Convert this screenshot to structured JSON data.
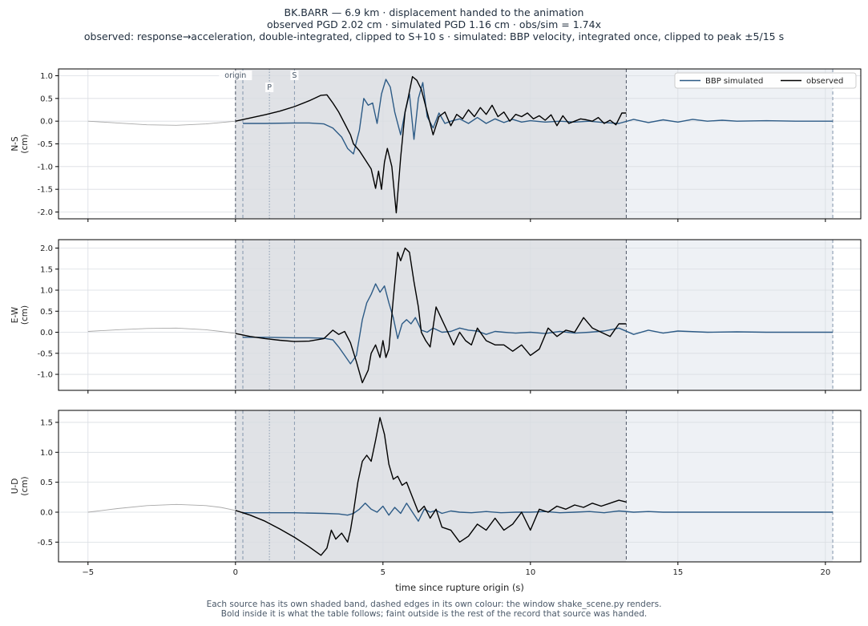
{
  "title_lines": [
    "BK.BARR  —  6.9 km   ·   displacement handed to the animation",
    "observed PGD 2.02 cm   ·   simulated PGD 1.16 cm   ·   obs/sim = 1.74x",
    "observed: response→acceleration, double-integrated, clipped to S+10 s   ·   simulated: BBP velocity, integrated once, clipped to peak ±5/15 s"
  ],
  "footer_lines": [
    "Each source has its own shaded band, dashed edges in its own colour: the window shake_scene.py renders.",
    "Bold inside it is what the table follows;   faint outside is the rest of the record that source was handed."
  ],
  "colors": {
    "observed": "#000000",
    "simulated": "#2d5b86",
    "observed_band": "#e0e2e6",
    "simulated_band": "#eef1f5",
    "phase_line": "#8a9bb0",
    "window_edge": "#5a6270",
    "faint_trace": "#a8a8a8"
  },
  "chart_data": {
    "type": "line",
    "xlabel": "time since rupture origin (s)",
    "xlim": [
      -6,
      21.2
    ],
    "xticks": [
      -5,
      0,
      5,
      10,
      15,
      20
    ],
    "grid": true,
    "legend": {
      "placement": "top-right",
      "panel": 0,
      "entries": [
        "BBP simulated",
        "observed"
      ]
    },
    "markers": [
      {
        "label": "origin",
        "t": 0.0
      },
      {
        "label": "P",
        "t": 1.15
      },
      {
        "label": "S",
        "t": 2.0
      }
    ],
    "windows": {
      "observed": [
        0.0,
        13.25
      ],
      "simulated": [
        0.25,
        20.25
      ]
    },
    "panels": [
      {
        "ylabel": "N-S\n(cm)",
        "ylim": [
          -2.15,
          1.15
        ],
        "yticks": [
          -2.0,
          -1.5,
          -1.0,
          -0.5,
          0.0,
          0.5,
          1.0
        ],
        "observed_faint": {
          "t": [
            -5,
            -4,
            -3,
            -2,
            -1,
            -0.5,
            0
          ],
          "v": [
            0.0,
            -0.04,
            -0.08,
            -0.09,
            -0.06,
            -0.03,
            0.0
          ]
        },
        "observed": {
          "t": [
            0,
            0.5,
            1,
            1.5,
            2,
            2.5,
            2.9,
            3.1,
            3.3,
            3.5,
            3.7,
            3.9,
            4.0,
            4.2,
            4.4,
            4.6,
            4.75,
            4.85,
            4.95,
            5.05,
            5.15,
            5.3,
            5.45,
            5.6,
            5.75,
            5.85,
            6.0,
            6.15,
            6.3,
            6.5,
            6.7,
            6.9,
            7.1,
            7.3,
            7.5,
            7.7,
            7.9,
            8.1,
            8.3,
            8.5,
            8.7,
            8.9,
            9.1,
            9.3,
            9.5,
            9.7,
            9.9,
            10.1,
            10.3,
            10.5,
            10.7,
            10.9,
            11.1,
            11.3,
            11.5,
            11.7,
            11.9,
            12.1,
            12.3,
            12.5,
            12.7,
            12.9,
            13.1,
            13.25
          ],
          "v": [
            0.0,
            0.07,
            0.14,
            0.22,
            0.32,
            0.45,
            0.57,
            0.58,
            0.4,
            0.2,
            -0.05,
            -0.3,
            -0.5,
            -0.65,
            -0.85,
            -1.05,
            -1.48,
            -1.1,
            -1.5,
            -0.9,
            -0.6,
            -1.0,
            -2.02,
            -0.8,
            0.2,
            0.5,
            0.98,
            0.9,
            0.7,
            0.2,
            -0.3,
            0.1,
            0.2,
            -0.1,
            0.15,
            0.05,
            0.25,
            0.1,
            0.3,
            0.15,
            0.35,
            0.1,
            0.2,
            0.0,
            0.15,
            0.1,
            0.18,
            0.05,
            0.12,
            0.02,
            0.14,
            -0.1,
            0.12,
            -0.05,
            0.0,
            0.05,
            0.03,
            0.0,
            0.08,
            -0.05,
            0.02,
            -0.08,
            0.18,
            0.18
          ]
        },
        "simulated": {
          "t": [
            0.25,
            1,
            2,
            2.5,
            3,
            3.3,
            3.6,
            3.8,
            4.0,
            4.2,
            4.35,
            4.5,
            4.65,
            4.8,
            4.95,
            5.1,
            5.25,
            5.4,
            5.6,
            5.75,
            5.9,
            6.05,
            6.2,
            6.35,
            6.5,
            6.7,
            6.9,
            7.1,
            7.3,
            7.6,
            7.9,
            8.2,
            8.5,
            8.8,
            9.1,
            9.4,
            9.7,
            10.0,
            10.5,
            11.0,
            11.5,
            12.0,
            12.5,
            13.0,
            13.5,
            14.0,
            14.5,
            15.0,
            15.5,
            16.0,
            16.5,
            17.0,
            18.0,
            19.0,
            20.25
          ],
          "v": [
            -0.05,
            -0.05,
            -0.04,
            -0.04,
            -0.06,
            -0.15,
            -0.35,
            -0.6,
            -0.72,
            -0.2,
            0.5,
            0.35,
            0.4,
            -0.05,
            0.6,
            0.92,
            0.75,
            0.2,
            -0.3,
            0.2,
            0.6,
            -0.4,
            0.5,
            0.85,
            0.1,
            -0.15,
            0.18,
            -0.05,
            0.0,
            0.05,
            -0.05,
            0.08,
            -0.05,
            0.05,
            -0.03,
            0.04,
            -0.02,
            0.01,
            -0.02,
            0.0,
            -0.02,
            0.0,
            -0.03,
            -0.05,
            0.04,
            -0.03,
            0.03,
            -0.02,
            0.04,
            0.0,
            0.02,
            0.0,
            0.01,
            0.0,
            0.0
          ]
        }
      },
      {
        "ylabel": "E-W\n(cm)",
        "ylim": [
          -1.38,
          2.2
        ],
        "yticks": [
          -1.0,
          -0.5,
          0.0,
          0.5,
          1.0,
          1.5,
          2.0
        ],
        "observed_faint": {
          "t": [
            -5,
            -4,
            -3,
            -2,
            -1,
            -0.5,
            0
          ],
          "v": [
            0.02,
            0.06,
            0.09,
            0.1,
            0.06,
            0.02,
            -0.03
          ]
        },
        "observed": {
          "t": [
            0,
            0.5,
            1,
            1.5,
            2,
            2.5,
            3.0,
            3.3,
            3.5,
            3.7,
            3.9,
            4.1,
            4.3,
            4.5,
            4.6,
            4.75,
            4.9,
            5.0,
            5.1,
            5.2,
            5.35,
            5.5,
            5.6,
            5.75,
            5.9,
            6.05,
            6.2,
            6.3,
            6.45,
            6.6,
            6.8,
            7.0,
            7.2,
            7.4,
            7.6,
            7.8,
            8.0,
            8.2,
            8.5,
            8.8,
            9.1,
            9.4,
            9.7,
            10.0,
            10.3,
            10.6,
            10.9,
            11.2,
            11.5,
            11.8,
            12.1,
            12.4,
            12.7,
            13.0,
            13.25
          ],
          "v": [
            -0.03,
            -0.1,
            -0.15,
            -0.19,
            -0.22,
            -0.21,
            -0.15,
            0.05,
            -0.05,
            0.02,
            -0.25,
            -0.7,
            -1.2,
            -0.9,
            -0.5,
            -0.3,
            -0.6,
            -0.2,
            -0.6,
            -0.4,
            0.8,
            1.9,
            1.7,
            2.0,
            1.9,
            1.2,
            0.6,
            0.0,
            -0.2,
            -0.35,
            0.6,
            0.3,
            0.0,
            -0.3,
            0.0,
            -0.2,
            -0.3,
            0.1,
            -0.2,
            -0.3,
            -0.3,
            -0.45,
            -0.3,
            -0.55,
            -0.4,
            0.1,
            -0.1,
            0.05,
            0.0,
            0.35,
            0.1,
            0.0,
            -0.1,
            0.2,
            0.2
          ]
        },
        "simulated": {
          "t": [
            0.25,
            1,
            2,
            2.5,
            3,
            3.3,
            3.5,
            3.7,
            3.9,
            4.1,
            4.3,
            4.45,
            4.6,
            4.75,
            4.9,
            5.05,
            5.2,
            5.35,
            5.5,
            5.65,
            5.8,
            5.95,
            6.1,
            6.3,
            6.5,
            6.7,
            7.0,
            7.3,
            7.6,
            7.9,
            8.2,
            8.5,
            8.8,
            9.1,
            9.5,
            10.0,
            10.5,
            11.0,
            11.5,
            12.0,
            12.5,
            13.0,
            13.5,
            14.0,
            14.5,
            15.0,
            16.0,
            17.0,
            18.0,
            19.0,
            20.25
          ],
          "v": [
            -0.12,
            -0.12,
            -0.13,
            -0.13,
            -0.14,
            -0.18,
            -0.35,
            -0.55,
            -0.75,
            -0.55,
            0.3,
            0.7,
            0.9,
            1.15,
            0.95,
            1.1,
            0.7,
            0.35,
            -0.15,
            0.2,
            0.3,
            0.2,
            0.35,
            0.05,
            0.0,
            0.1,
            0.0,
            0.02,
            0.1,
            0.05,
            0.03,
            -0.05,
            0.02,
            0.0,
            -0.02,
            0.0,
            -0.03,
            0.02,
            -0.02,
            0.0,
            0.03,
            0.1,
            -0.05,
            0.05,
            -0.02,
            0.03,
            0.0,
            0.01,
            0.0,
            0.0,
            0.0
          ]
        }
      },
      {
        "ylabel": "U-D\n(cm)",
        "ylim": [
          -0.83,
          1.7
        ],
        "yticks": [
          -0.5,
          0.0,
          0.5,
          1.0,
          1.5
        ],
        "observed_faint": {
          "t": [
            -5,
            -4,
            -3,
            -2,
            -1,
            -0.5,
            0
          ],
          "v": [
            0.0,
            0.06,
            0.11,
            0.13,
            0.11,
            0.08,
            0.03
          ]
        },
        "observed": {
          "t": [
            0,
            0.5,
            1,
            1.5,
            2,
            2.5,
            2.9,
            3.1,
            3.25,
            3.4,
            3.6,
            3.8,
            3.9,
            4.0,
            4.15,
            4.3,
            4.45,
            4.6,
            4.75,
            4.9,
            5.05,
            5.2,
            5.35,
            5.5,
            5.65,
            5.8,
            6.0,
            6.2,
            6.4,
            6.6,
            6.8,
            7.0,
            7.3,
            7.6,
            7.9,
            8.2,
            8.5,
            8.8,
            9.1,
            9.4,
            9.7,
            10.0,
            10.3,
            10.6,
            10.9,
            11.2,
            11.5,
            11.8,
            12.1,
            12.4,
            12.7,
            13.0,
            13.25
          ],
          "v": [
            0.03,
            -0.05,
            -0.15,
            -0.28,
            -0.42,
            -0.58,
            -0.72,
            -0.6,
            -0.3,
            -0.45,
            -0.35,
            -0.5,
            -0.3,
            0.0,
            0.5,
            0.85,
            0.95,
            0.85,
            1.2,
            1.58,
            1.3,
            0.8,
            0.55,
            0.6,
            0.45,
            0.5,
            0.25,
            0.0,
            0.1,
            -0.1,
            0.05,
            -0.25,
            -0.3,
            -0.5,
            -0.4,
            -0.2,
            -0.3,
            -0.1,
            -0.3,
            -0.2,
            0.0,
            -0.3,
            0.05,
            0.0,
            0.1,
            0.05,
            0.12,
            0.08,
            0.15,
            0.1,
            0.15,
            0.2,
            0.17
          ]
        },
        "simulated": {
          "t": [
            0.25,
            1,
            2,
            3,
            3.5,
            3.8,
            4.0,
            4.2,
            4.4,
            4.6,
            4.8,
            5.0,
            5.2,
            5.4,
            5.6,
            5.8,
            6.0,
            6.2,
            6.4,
            6.6,
            6.8,
            7.0,
            7.3,
            7.6,
            8.0,
            8.5,
            9.0,
            9.5,
            10.0,
            10.5,
            11.0,
            11.5,
            12.0,
            12.5,
            13.0,
            13.5,
            14.0,
            14.5,
            15.0,
            16.0,
            17.0,
            18.0,
            19.0,
            20.25
          ],
          "v": [
            -0.01,
            -0.01,
            -0.01,
            -0.02,
            -0.03,
            -0.05,
            -0.02,
            0.05,
            0.15,
            0.05,
            0.0,
            0.1,
            -0.05,
            0.08,
            -0.02,
            0.15,
            0.0,
            -0.15,
            0.05,
            0.0,
            0.03,
            -0.02,
            0.02,
            0.0,
            -0.01,
            0.01,
            -0.01,
            0.0,
            0.0,
            0.01,
            -0.01,
            0.0,
            0.01,
            -0.01,
            0.02,
            0.0,
            0.01,
            0.0,
            0.0,
            0.0,
            0.0,
            0.0,
            0.0,
            0.0
          ]
        }
      }
    ]
  }
}
